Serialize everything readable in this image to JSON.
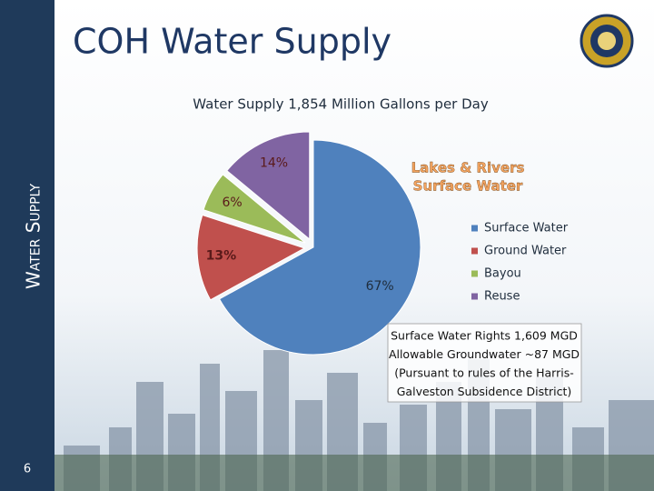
{
  "slide": {
    "title": "COH Water Supply",
    "side_label": "Water Supply",
    "number": "6"
  },
  "chart_data": {
    "type": "pie",
    "title": "Water Supply 1,854 Million Gallons per Day",
    "categories": [
      "Surface Water",
      "Ground Water",
      "Bayou",
      "Reuse"
    ],
    "values": [
      67,
      13,
      6,
      14
    ],
    "value_labels": [
      "67%",
      "13%",
      "6%",
      "14%"
    ],
    "colors": [
      "#4f81bd",
      "#c0504d",
      "#9bbb59",
      "#8064a2"
    ],
    "annotation": [
      "Lakes & Rivers",
      "Surface Water"
    ],
    "legend": "right"
  },
  "note": {
    "lines": [
      "Surface Water Rights 1,609 MGD",
      "Allowable Groundwater ~87 MGD",
      "(Pursuant to rules of the Harris-",
      "Galveston Subsidence District)"
    ]
  }
}
